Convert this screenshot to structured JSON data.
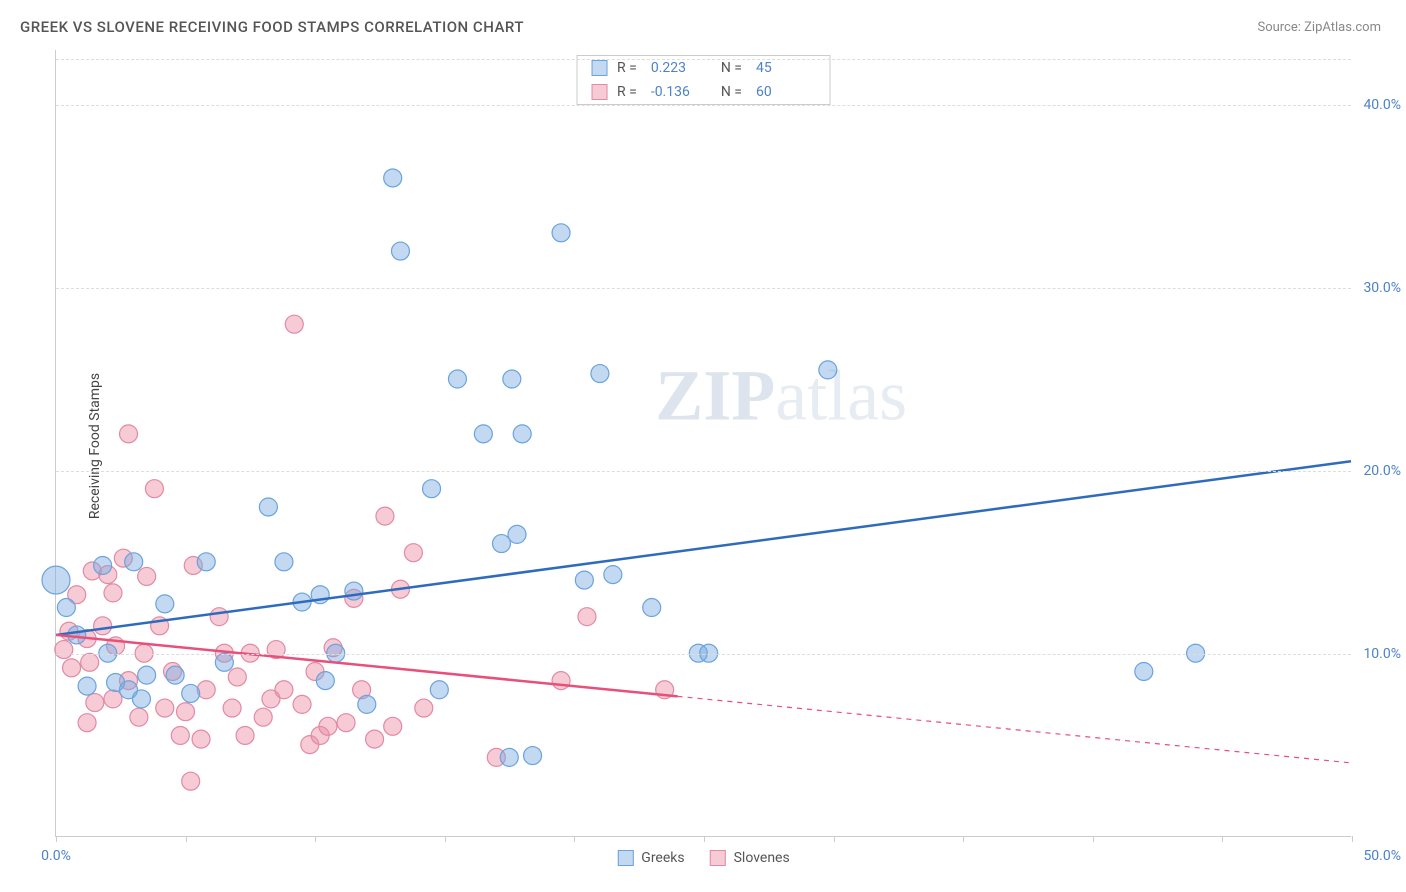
{
  "title": "GREEK VS SLOVENE RECEIVING FOOD STAMPS CORRELATION CHART",
  "source_label": "Source: ZipAtlas.com",
  "y_axis_label": "Receiving Food Stamps",
  "watermark_parts": [
    "ZIP",
    "atlas"
  ],
  "colors": {
    "greek_fill": "rgba(120,170,225,0.45)",
    "greek_stroke": "#6aa3dd",
    "greek_line": "#2e6bbd",
    "slovene_fill": "rgba(235,140,165,0.45)",
    "slovene_stroke": "#e28aa3",
    "slovene_line": "#e84f7a",
    "grid": "#dddddd",
    "axis": "#cccccc",
    "text": "#555555",
    "tick_label": "#4d82c9",
    "background": "#ffffff"
  },
  "chart": {
    "type": "scatter",
    "xlim": [
      0,
      50
    ],
    "ylim": [
      0,
      43
    ],
    "x_ticks": [
      0,
      5,
      10,
      15,
      20,
      25,
      30,
      35,
      40,
      45,
      50
    ],
    "x_tick_labels": {
      "0": "0.0%",
      "50": "50.0%"
    },
    "y_gridlines": [
      10,
      20,
      30,
      40,
      42.5
    ],
    "y_tick_labels": {
      "10": "10.0%",
      "20": "20.0%",
      "30": "30.0%",
      "40": "40.0%"
    },
    "marker_radius": 9,
    "marker_radius_large": 14,
    "line_width": 2.5
  },
  "series": [
    {
      "name": "Greeks",
      "color_key": "greek",
      "R": "0.223",
      "N": "45",
      "trend": {
        "x1": 0,
        "y1": 11,
        "x2": 50,
        "y2": 20.5,
        "solid_until_x": 50
      },
      "large_points": [
        {
          "x": 0,
          "y": 14
        }
      ],
      "points": [
        {
          "x": 0.4,
          "y": 12.5
        },
        {
          "x": 0.8,
          "y": 11
        },
        {
          "x": 1.2,
          "y": 8.2
        },
        {
          "x": 2.3,
          "y": 8.4
        },
        {
          "x": 2.8,
          "y": 8
        },
        {
          "x": 3.5,
          "y": 8.8
        },
        {
          "x": 4.6,
          "y": 8.8
        },
        {
          "x": 4.2,
          "y": 12.7
        },
        {
          "x": 1.8,
          "y": 14.8
        },
        {
          "x": 3.0,
          "y": 15
        },
        {
          "x": 2.0,
          "y": 10
        },
        {
          "x": 3.3,
          "y": 7.5
        },
        {
          "x": 5.2,
          "y": 7.8
        },
        {
          "x": 5.8,
          "y": 15
        },
        {
          "x": 6.5,
          "y": 9.5
        },
        {
          "x": 8.2,
          "y": 18
        },
        {
          "x": 8.8,
          "y": 15
        },
        {
          "x": 9.5,
          "y": 12.8
        },
        {
          "x": 10.4,
          "y": 8.5
        },
        {
          "x": 10.8,
          "y": 10
        },
        {
          "x": 10.2,
          "y": 13.2
        },
        {
          "x": 11.5,
          "y": 13.4
        },
        {
          "x": 12.0,
          "y": 7.2
        },
        {
          "x": 13.0,
          "y": 36
        },
        {
          "x": 13.3,
          "y": 32
        },
        {
          "x": 14.5,
          "y": 19
        },
        {
          "x": 14.8,
          "y": 8
        },
        {
          "x": 15.5,
          "y": 25
        },
        {
          "x": 16.5,
          "y": 22
        },
        {
          "x": 17.2,
          "y": 16
        },
        {
          "x": 17.6,
          "y": 25
        },
        {
          "x": 17.8,
          "y": 16.5
        },
        {
          "x": 17.5,
          "y": 4.3
        },
        {
          "x": 18.4,
          "y": 4.4
        },
        {
          "x": 18.0,
          "y": 22
        },
        {
          "x": 19.5,
          "y": 33
        },
        {
          "x": 20.4,
          "y": 14
        },
        {
          "x": 21.0,
          "y": 25.3
        },
        {
          "x": 21.5,
          "y": 14.3
        },
        {
          "x": 23.0,
          "y": 12.5
        },
        {
          "x": 24.8,
          "y": 10
        },
        {
          "x": 25.2,
          "y": 10
        },
        {
          "x": 29.8,
          "y": 25.5
        },
        {
          "x": 42.0,
          "y": 9
        },
        {
          "x": 44.0,
          "y": 10
        }
      ]
    },
    {
      "name": "Slovenes",
      "color_key": "slovene",
      "R": "-0.136",
      "N": "60",
      "trend": {
        "x1": 0,
        "y1": 11,
        "x2": 50,
        "y2": 4.0,
        "solid_until_x": 24
      },
      "large_points": [],
      "points": [
        {
          "x": 0.3,
          "y": 10.2
        },
        {
          "x": 0.5,
          "y": 11.2
        },
        {
          "x": 0.8,
          "y": 13.2
        },
        {
          "x": 0.6,
          "y": 9.2
        },
        {
          "x": 1.2,
          "y": 10.8
        },
        {
          "x": 1.3,
          "y": 9.5
        },
        {
          "x": 1.5,
          "y": 7.3
        },
        {
          "x": 1.2,
          "y": 6.2
        },
        {
          "x": 1.8,
          "y": 11.5
        },
        {
          "x": 1.4,
          "y": 14.5
        },
        {
          "x": 2.0,
          "y": 14.3
        },
        {
          "x": 2.2,
          "y": 13.3
        },
        {
          "x": 2.3,
          "y": 10.4
        },
        {
          "x": 2.6,
          "y": 15.2
        },
        {
          "x": 2.2,
          "y": 7.5
        },
        {
          "x": 2.8,
          "y": 8.5
        },
        {
          "x": 2.8,
          "y": 22
        },
        {
          "x": 3.2,
          "y": 6.5
        },
        {
          "x": 3.5,
          "y": 14.2
        },
        {
          "x": 3.8,
          "y": 19
        },
        {
          "x": 3.4,
          "y": 10
        },
        {
          "x": 4.0,
          "y": 11.5
        },
        {
          "x": 4.2,
          "y": 7
        },
        {
          "x": 4.5,
          "y": 9
        },
        {
          "x": 4.8,
          "y": 5.5
        },
        {
          "x": 5.0,
          "y": 6.8
        },
        {
          "x": 5.3,
          "y": 14.8
        },
        {
          "x": 5.6,
          "y": 5.3
        },
        {
          "x": 5.8,
          "y": 8
        },
        {
          "x": 5.2,
          "y": 3
        },
        {
          "x": 6.3,
          "y": 12
        },
        {
          "x": 6.5,
          "y": 10
        },
        {
          "x": 6.8,
          "y": 7
        },
        {
          "x": 7.0,
          "y": 8.7
        },
        {
          "x": 7.3,
          "y": 5.5
        },
        {
          "x": 7.5,
          "y": 10
        },
        {
          "x": 8.0,
          "y": 6.5
        },
        {
          "x": 8.3,
          "y": 7.5
        },
        {
          "x": 8.5,
          "y": 10.2
        },
        {
          "x": 8.8,
          "y": 8
        },
        {
          "x": 9.2,
          "y": 28
        },
        {
          "x": 9.5,
          "y": 7.2
        },
        {
          "x": 9.8,
          "y": 5
        },
        {
          "x": 10.0,
          "y": 9
        },
        {
          "x": 10.2,
          "y": 5.5
        },
        {
          "x": 10.7,
          "y": 10.3
        },
        {
          "x": 10.5,
          "y": 6
        },
        {
          "x": 11.2,
          "y": 6.2
        },
        {
          "x": 11.5,
          "y": 13
        },
        {
          "x": 11.8,
          "y": 8
        },
        {
          "x": 12.3,
          "y": 5.3
        },
        {
          "x": 12.7,
          "y": 17.5
        },
        {
          "x": 13.0,
          "y": 6
        },
        {
          "x": 13.3,
          "y": 13.5
        },
        {
          "x": 13.8,
          "y": 15.5
        },
        {
          "x": 14.2,
          "y": 7
        },
        {
          "x": 17.0,
          "y": 4.3
        },
        {
          "x": 19.5,
          "y": 8.5
        },
        {
          "x": 20.5,
          "y": 12
        },
        {
          "x": 23.5,
          "y": 8
        }
      ]
    }
  ],
  "legend_top": {
    "r_label": "R =",
    "n_label": "N ="
  },
  "legend_bottom": [
    {
      "label": "Greeks",
      "color_key": "greek"
    },
    {
      "label": "Slovenes",
      "color_key": "slovene"
    }
  ]
}
